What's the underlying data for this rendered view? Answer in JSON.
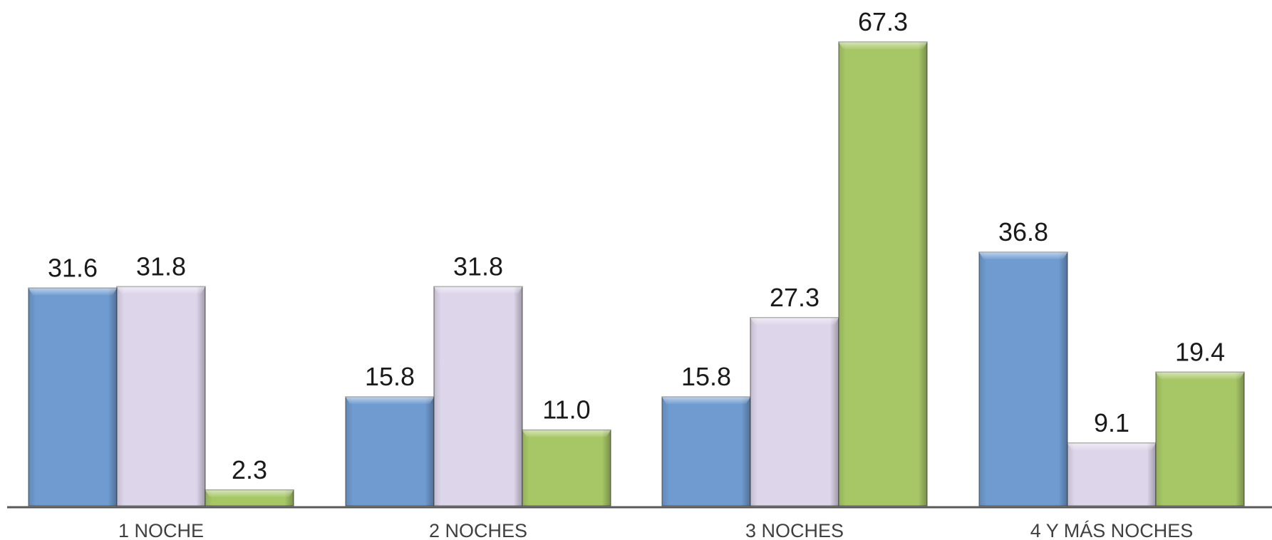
{
  "chart_data": {
    "type": "bar",
    "categories": [
      "1 NOCHE",
      "2 NOCHES",
      "3 NOCHES",
      "4 Y MÁS NOCHES"
    ],
    "value_labels": [
      [
        "31.6",
        "31.8",
        "2.3"
      ],
      [
        "15.8",
        "31.8",
        "11.0"
      ],
      [
        "15.8",
        "27.3",
        "67.3"
      ],
      [
        "36.8",
        "9.1",
        "19.4"
      ]
    ],
    "series": [
      {
        "values": [
          31.6,
          15.8,
          15.8,
          36.8
        ],
        "color": "#6f9bd0"
      },
      {
        "values": [
          31.8,
          31.8,
          27.3,
          9.1
        ],
        "color": "#ddd5ea"
      },
      {
        "values": [
          2.3,
          11.0,
          67.3,
          19.4
        ],
        "color": "#a7c766"
      }
    ],
    "ylim": [
      0,
      70
    ],
    "grid": false,
    "legend": "none",
    "data_labels": true
  }
}
